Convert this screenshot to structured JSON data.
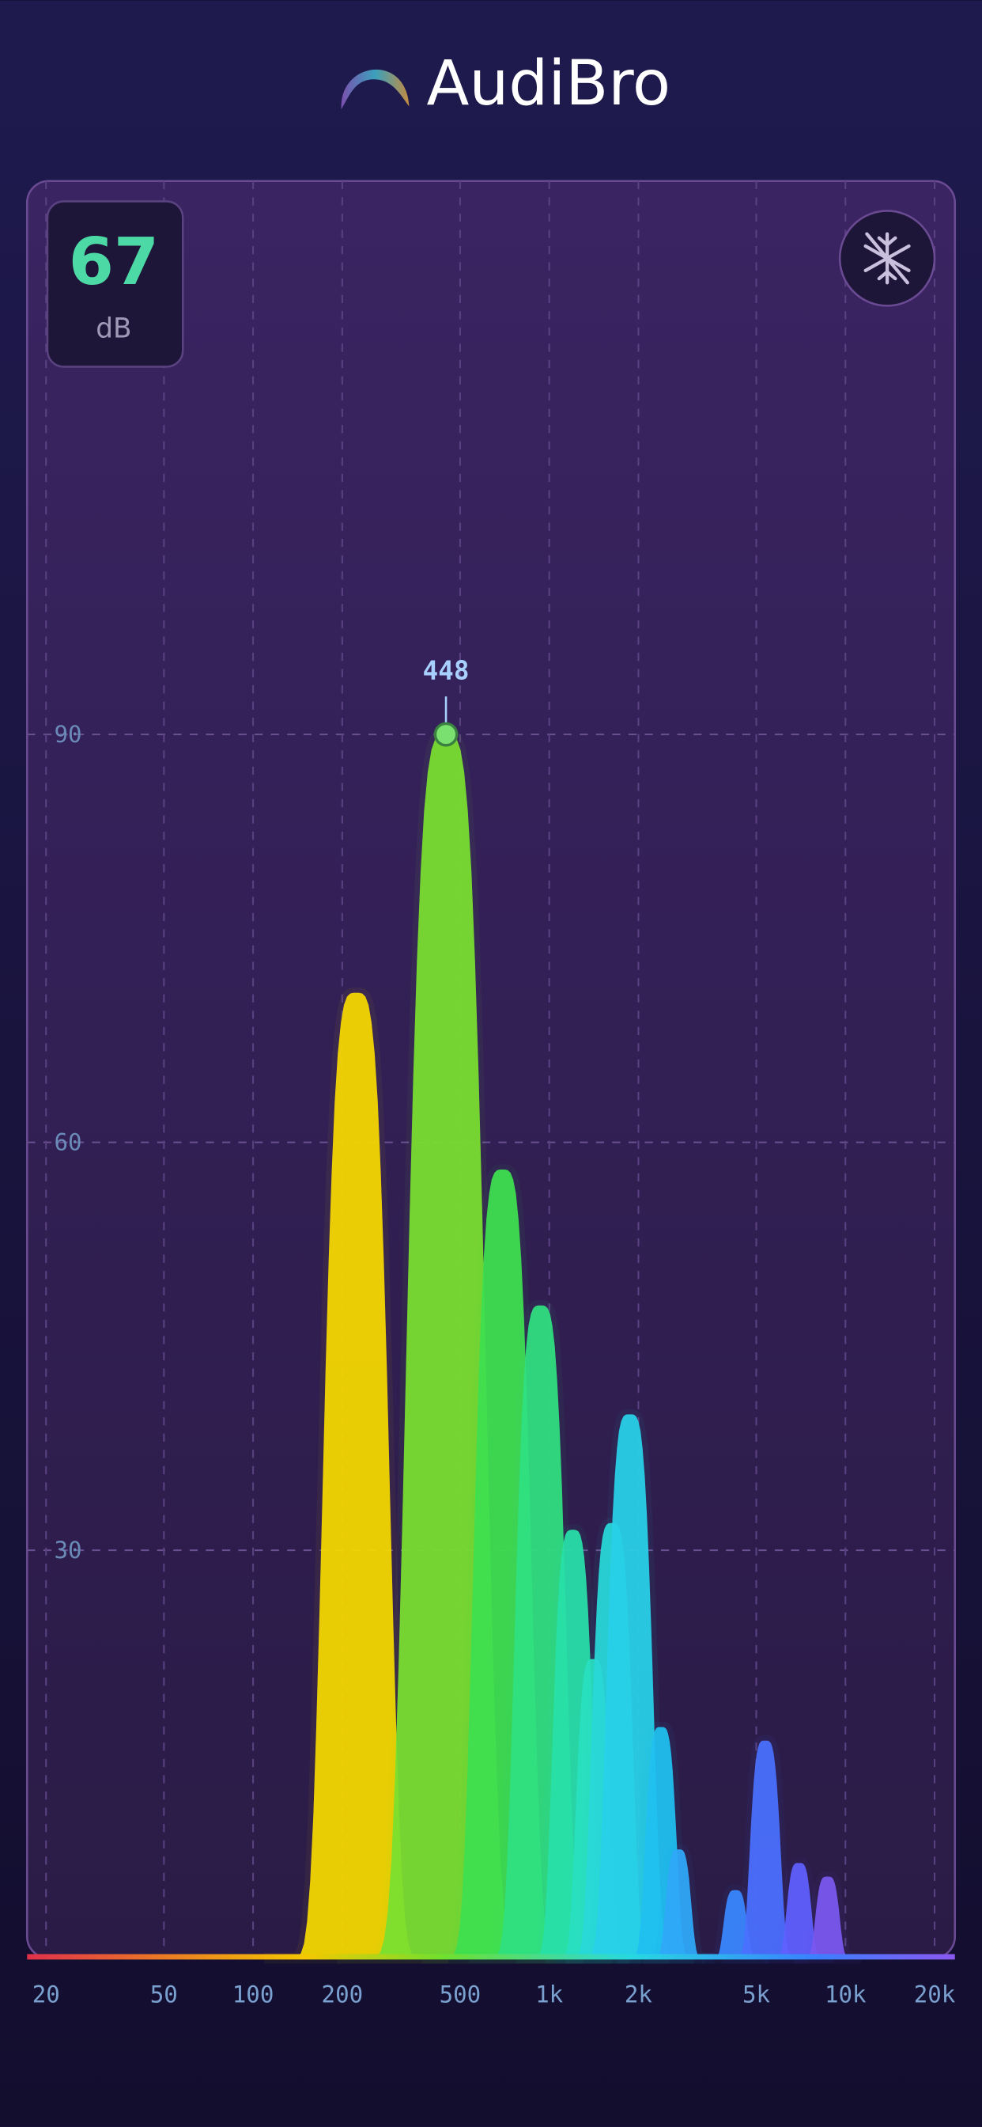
{
  "header": {
    "title": "AudiBro"
  },
  "meter": {
    "value": 67,
    "unit": "dB"
  },
  "chart_data": {
    "type": "spectrum",
    "x": [
      223,
      448,
      695,
      934,
      1201,
      1407,
      1630,
      1870,
      2383,
      2730,
      4250,
      5360,
      6970,
      8700
    ],
    "values": [
      71,
      90,
      58,
      48,
      31.5,
      22,
      32,
      40,
      17,
      8,
      5,
      16,
      7,
      6
    ],
    "colors": [
      "#f5d800",
      "#7ae030",
      "#3ee050",
      "#30e080",
      "#28e0a8",
      "#28e0c0",
      "#28d8d8",
      "#28d0e8",
      "#20c0f0",
      "#30a8f8",
      "#3a88ff",
      "#4a70ff",
      "#6060ff",
      "#7a58f0"
    ],
    "xlim": [
      20,
      20000
    ],
    "ylim": [
      0,
      130
    ],
    "log_x": true,
    "grid": true,
    "xticks": [
      20,
      50,
      100,
      200,
      500,
      {
        "value": 1000,
        "label": "1k"
      },
      {
        "value": 2000,
        "label": "2k"
      },
      {
        "value": 5000,
        "label": "5k"
      },
      {
        "value": 10000,
        "label": "10k"
      },
      {
        "value": 20000,
        "label": "20k"
      }
    ],
    "yticks": [
      30,
      60,
      90
    ]
  }
}
